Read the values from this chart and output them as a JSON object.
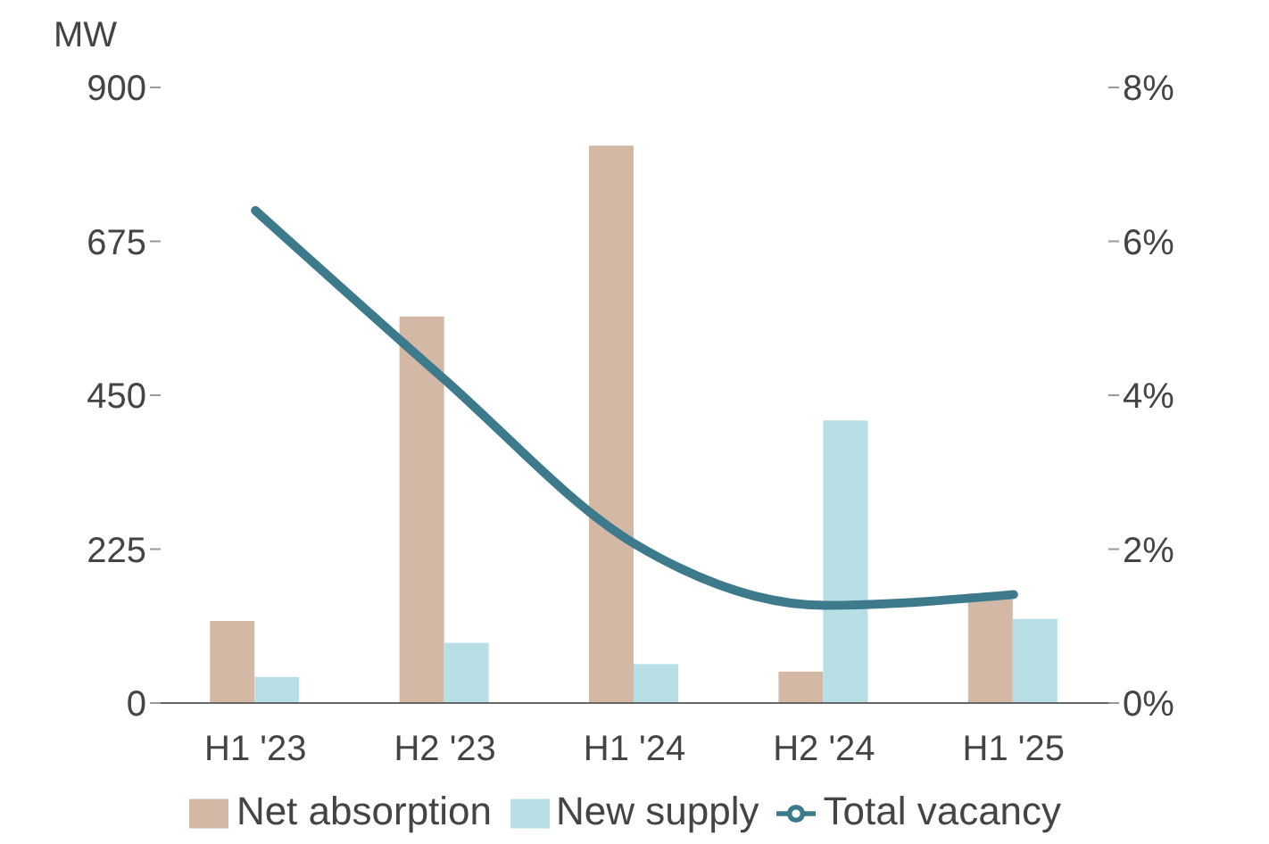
{
  "chart_data": {
    "type": "bar",
    "ylabel": "MW",
    "categories": [
      "H1 '23",
      "H2 '23",
      "H1 '24",
      "H2 '24",
      "H1 '25"
    ],
    "series": [
      {
        "name": "Net absorption",
        "color": "#d2b8a5",
        "values": [
          120,
          565,
          815,
          46,
          160
        ]
      },
      {
        "name": "New supply",
        "color": "#b9dfe6",
        "values": [
          38,
          88,
          57,
          413,
          123
        ]
      },
      {
        "name": "Total vacancy",
        "type": "line",
        "axis": "y2",
        "color": "#3d7a8c",
        "values": [
          6.4,
          4.2,
          2.07,
          1.27,
          1.41
        ]
      }
    ],
    "ylim": [
      0,
      900
    ],
    "yticks": [
      0,
      225,
      450,
      675,
      900
    ],
    "y2lim": [
      0,
      8
    ],
    "y2ticks": [
      {
        "value": 0,
        "label": "0%"
      },
      {
        "value": 2,
        "label": "2%"
      },
      {
        "value": 4,
        "label": "4%"
      },
      {
        "value": 6,
        "label": "6%"
      },
      {
        "value": 8,
        "label": "8%"
      }
    ],
    "grid": false,
    "legend": "bottom",
    "marker": "none",
    "line_style": "solid"
  }
}
